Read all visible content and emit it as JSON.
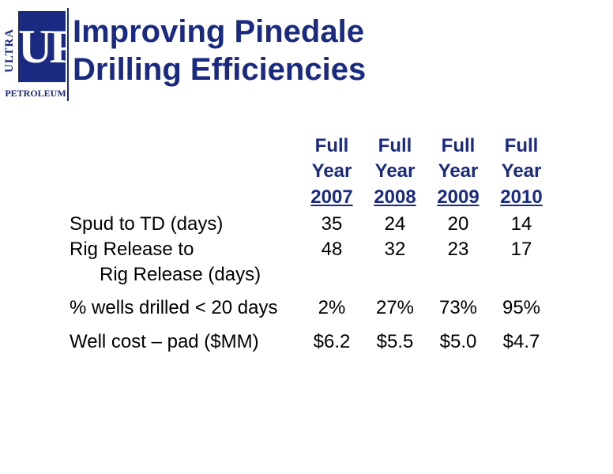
{
  "logo": {
    "side_text": "ULTRA",
    "letters": "UP",
    "bottom_text": "PETROLEUM"
  },
  "title": {
    "line1": "Improving Pinedale",
    "line2": "Drilling Efficiencies"
  },
  "table": {
    "headers": [
      {
        "line1": "Full",
        "line2": "Year",
        "line3": "2007"
      },
      {
        "line1": "Full",
        "line2": "Year",
        "line3": "2008"
      },
      {
        "line1": "Full",
        "line2": "Year",
        "line3": "2009"
      },
      {
        "line1": "Full",
        "line2": "Year",
        "line3": "2010"
      }
    ],
    "rows": [
      {
        "label": "Spud to TD (days)",
        "values": [
          "35",
          "24",
          "20",
          "14"
        ]
      },
      {
        "label": "Rig Release to",
        "label2": "Rig Release (days)",
        "values": [
          "48",
          "32",
          "23",
          "17"
        ]
      },
      {
        "label": "% wells drilled < 20 days",
        "values": [
          "2%",
          "27%",
          "73%",
          "95%"
        ]
      },
      {
        "label": "Well cost – pad ($MM)",
        "values": [
          "$6.2",
          "$5.5",
          "$5.0",
          "$4.7"
        ]
      }
    ]
  },
  "colors": {
    "brand_navy": "#1a2a80",
    "text": "#000000",
    "background": "#ffffff"
  }
}
